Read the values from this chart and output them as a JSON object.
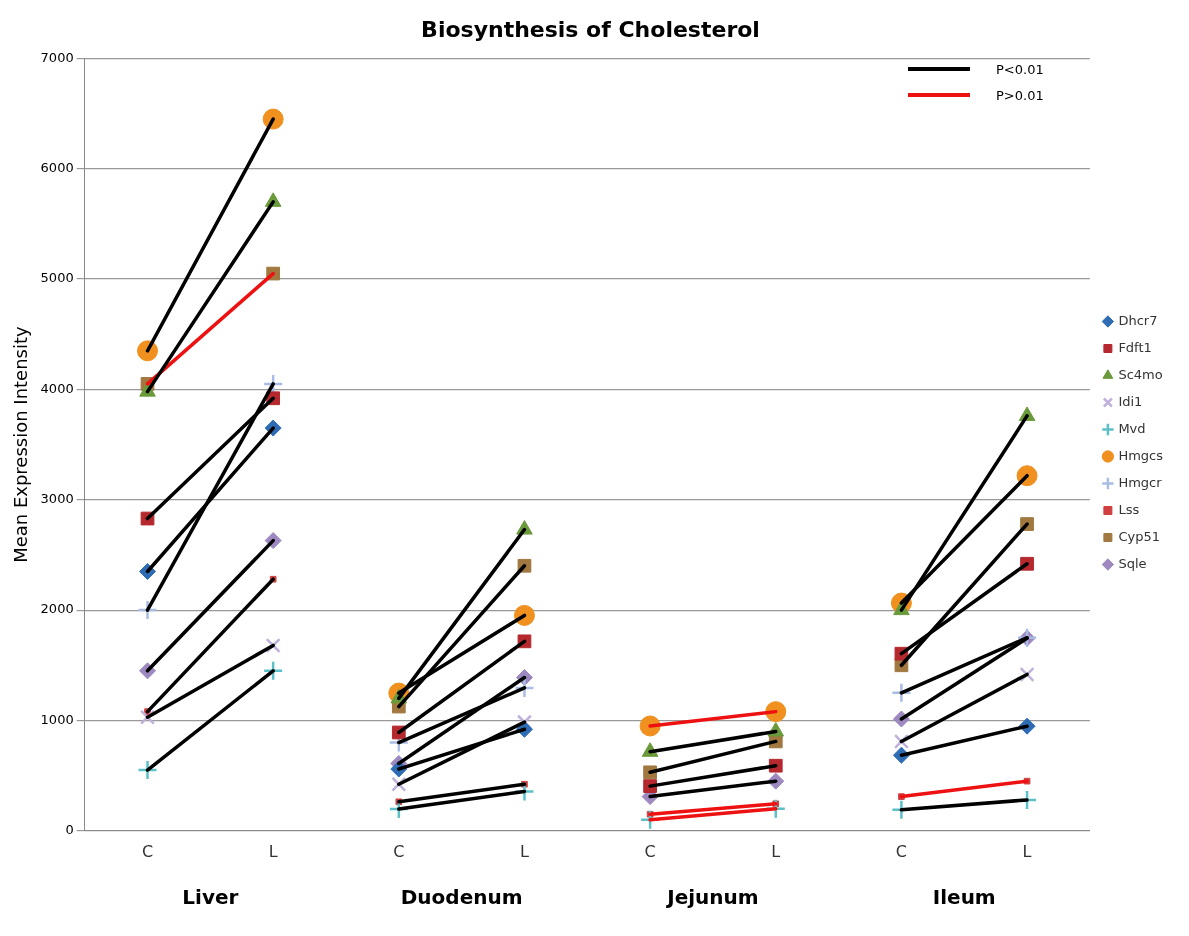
{
  "chart_data": {
    "type": "line",
    "title": "Biosynthesis of Cholesterol",
    "ylabel": "Mean Expression Intensity",
    "categories": [
      "C",
      "L",
      "C",
      "L",
      "C",
      "L",
      "C",
      "L"
    ],
    "annotations": [
      "Liver",
      "Duodenum",
      "Jejunum",
      "Ileum"
    ],
    "ylim": [
      0,
      7000
    ],
    "yticks": [
      0,
      1000,
      2000,
      3000,
      4000,
      5000,
      6000,
      7000
    ],
    "grid": "y",
    "legend": "right",
    "series": [
      {
        "name": "Dhcr7",
        "type": "scatter",
        "marker": "diamond",
        "color": "#2e6db4",
        "values": [
          2350,
          3650,
          560,
          920,
          null,
          null,
          685,
          948
        ]
      },
      {
        "name": "Fdft1",
        "type": "scatter",
        "marker": "square",
        "color": "#b5282e",
        "values": [
          2830,
          3920,
          891,
          1717,
          405,
          590,
          1605,
          2420
        ]
      },
      {
        "name": "Sc4mo",
        "type": "scatter",
        "marker": "triangle",
        "color": "#6a9a3a",
        "values": [
          3980,
          5700,
          1200,
          2730,
          716,
          900,
          2000,
          3760
        ]
      },
      {
        "name": "Idi1",
        "type": "scatter",
        "marker": "x",
        "color": "#c0b0dc",
        "values": [
          1030,
          1680,
          422,
          985,
          null,
          null,
          810,
          1417
        ]
      },
      {
        "name": "Mvd",
        "type": "scatter",
        "marker": "cross",
        "color": "#5bc0c8",
        "values": [
          550,
          1450,
          197,
          357,
          100,
          200,
          190,
          280
        ]
      },
      {
        "name": "Hmgcs",
        "type": "scatter",
        "marker": "circle",
        "color": "#f0901e",
        "values": [
          4350,
          6450,
          1248,
          1952,
          950,
          1080,
          2064,
          3218
        ]
      },
      {
        "name": "Hmgcr",
        "type": "scatter",
        "marker": "cross",
        "color": "#a8bce4",
        "values": [
          2000,
          4050,
          800,
          1295,
          null,
          null,
          1250,
          1750
        ]
      },
      {
        "name": "Lss",
        "type": "scatter",
        "marker": "square",
        "color": "#d04040",
        "values": [
          1080,
          2280,
          263,
          422,
          150,
          245,
          310,
          450
        ]
      },
      {
        "name": "Cyp51",
        "type": "scatter",
        "marker": "square",
        "color": "#a07840",
        "values": [
          4050,
          5050,
          1126,
          2402,
          530,
          810,
          1500,
          2780
        ]
      },
      {
        "name": "Sqle",
        "type": "scatter",
        "marker": "diamond",
        "color": "#9d88c0",
        "values": [
          1450,
          2630,
          610,
          1389,
          310,
          450,
          1013,
          1745
        ]
      },
      {
        "name": "P<0.01",
        "type": "line",
        "color": "#000000",
        "values": [
          2350,
          3650,
          560,
          920,
          null,
          null,
          685,
          948
        ]
      },
      {
        "type": "line",
        "color": "#000000",
        "values": [
          2830,
          3920,
          891,
          1717,
          405,
          590,
          1605,
          2420
        ]
      },
      {
        "type": "line",
        "color": "#000000",
        "values": [
          3980,
          5700,
          1200,
          2730,
          716,
          900,
          2000,
          3760
        ]
      },
      {
        "type": "line",
        "color": "#000000",
        "values": [
          1030,
          1680,
          422,
          985,
          null,
          null,
          810,
          1417
        ]
      },
      {
        "type": "line",
        "color": "#000000",
        "values": [
          550,
          1450,
          197,
          357,
          null,
          null,
          190,
          280
        ]
      },
      {
        "type": "line",
        "color": "#000000",
        "values": [
          4350,
          6450,
          1248,
          1952,
          null,
          null,
          2064,
          3218
        ]
      },
      {
        "type": "line",
        "color": "#000000",
        "values": [
          2000,
          4050,
          800,
          1295,
          null,
          null,
          1250,
          1750
        ]
      },
      {
        "type": "line",
        "color": "#000000",
        "values": [
          1080,
          2280,
          263,
          422,
          null,
          null,
          null,
          null
        ]
      },
      {
        "type": "line",
        "color": "#000000",
        "values": [
          null,
          null,
          1126,
          2402,
          530,
          810,
          1500,
          2780
        ]
      },
      {
        "type": "line",
        "color": "#000000",
        "values": [
          1450,
          2630,
          610,
          1389,
          310,
          450,
          1013,
          1745
        ]
      },
      {
        "name": "P>0.01",
        "type": "line",
        "color": "#ee1111",
        "values": [
          4050,
          5050,
          null,
          null,
          null,
          null,
          null,
          null
        ]
      },
      {
        "type": "line",
        "color": "#ee1111",
        "values": [
          null,
          null,
          null,
          null,
          950,
          1080,
          null,
          null
        ]
      },
      {
        "type": "line",
        "color": "#ee1111",
        "values": [
          null,
          null,
          null,
          null,
          150,
          245,
          310,
          450
        ]
      },
      {
        "type": "line",
        "color": "#ee1111",
        "values": [
          null,
          null,
          null,
          null,
          100,
          200,
          null,
          null
        ]
      }
    ]
  }
}
